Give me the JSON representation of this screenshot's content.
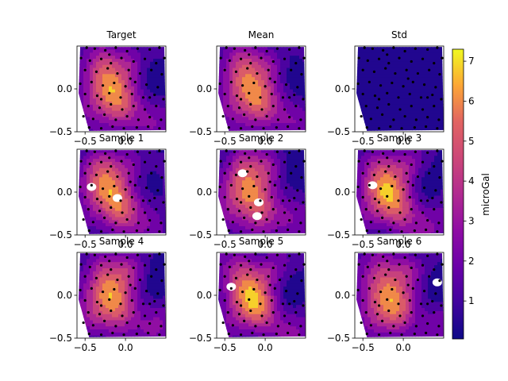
{
  "figure": {
    "colorbar": {
      "label": "microGal",
      "min": 0.05,
      "max": 7.3,
      "ticks": [
        1,
        2,
        3,
        4,
        5,
        6,
        7
      ],
      "colormap": "plasma"
    }
  },
  "chart_data": [
    {
      "type": "heatmap",
      "title": "Target",
      "xlim": [
        -0.6,
        0.5
      ],
      "ylim": [
        -0.5,
        0.5
      ],
      "xticks": [
        -0.5,
        0.0
      ],
      "yticks": [
        -0.5,
        0.0
      ],
      "xtick_labels": [
        "−0.5",
        "0.0"
      ],
      "ytick_labels": [
        "−0.5",
        "0.0"
      ],
      "field": "target",
      "holes": [],
      "show_xticks": true
    },
    {
      "type": "heatmap",
      "title": "Mean",
      "xlim": [
        -0.6,
        0.5
      ],
      "ylim": [
        -0.5,
        0.5
      ],
      "xticks": [
        -0.5,
        0.0
      ],
      "yticks": [
        -0.5,
        0.0
      ],
      "xtick_labels": [
        "−0.5",
        "0.0"
      ],
      "ytick_labels": [
        "−0.5",
        "0.0"
      ],
      "field": "mean",
      "holes": [],
      "show_xticks": true
    },
    {
      "type": "heatmap",
      "title": "Std",
      "xlim": [
        -0.6,
        0.5
      ],
      "ylim": [
        -0.5,
        0.5
      ],
      "xticks": [
        -0.5,
        0.0
      ],
      "yticks": [
        -0.5,
        0.0
      ],
      "xtick_labels": [
        "−0.5",
        "0.0"
      ],
      "ytick_labels": [
        "−0.5",
        "0.0"
      ],
      "field": "std",
      "holes": [],
      "show_xticks": true
    },
    {
      "type": "heatmap",
      "title": "Sample 1",
      "xlim": [
        -0.6,
        0.5
      ],
      "ylim": [
        -0.5,
        0.5
      ],
      "xticks": [
        -0.5,
        0.0
      ],
      "yticks": [
        -0.5,
        0.0
      ],
      "xtick_labels": [
        "−0.5",
        "0.0"
      ],
      "ytick_labels": [
        "−0.5",
        "0.0"
      ],
      "field": "s1",
      "holes": [
        [
          -0.1,
          -0.07
        ],
        [
          -0.42,
          0.06
        ]
      ],
      "show_xticks": true
    },
    {
      "type": "heatmap",
      "title": "Sample 2",
      "xlim": [
        -0.6,
        0.5
      ],
      "ylim": [
        -0.5,
        0.5
      ],
      "xticks": [
        -0.5,
        0.0
      ],
      "yticks": [
        -0.5,
        0.0
      ],
      "xtick_labels": [
        "−0.5",
        "0.0"
      ],
      "ytick_labels": [
        "−0.5",
        "0.0"
      ],
      "field": "s2",
      "holes": [
        [
          -0.28,
          0.22
        ],
        [
          -0.08,
          -0.12
        ],
        [
          -0.1,
          -0.28
        ]
      ],
      "show_xticks": true
    },
    {
      "type": "heatmap",
      "title": "Sample 3",
      "xlim": [
        -0.6,
        0.5
      ],
      "ylim": [
        -0.5,
        0.5
      ],
      "xticks": [
        -0.5,
        0.0
      ],
      "yticks": [
        -0.5,
        0.0
      ],
      "xtick_labels": [
        "−0.5",
        "0.0"
      ],
      "ytick_labels": [
        "−0.5",
        "0.0"
      ],
      "field": "s3",
      "holes": [
        [
          -0.38,
          0.08
        ]
      ],
      "show_xticks": true
    },
    {
      "type": "heatmap",
      "title": "Sample 4",
      "xlim": [
        -0.6,
        0.5
      ],
      "ylim": [
        -0.5,
        0.5
      ],
      "xticks": [
        -0.5,
        0.0
      ],
      "yticks": [
        -0.5,
        0.0
      ],
      "xtick_labels": [
        "−0.5",
        "0.0"
      ],
      "ytick_labels": [
        "−0.5",
        "0.0"
      ],
      "field": "s4",
      "holes": [],
      "show_xticks": true
    },
    {
      "type": "heatmap",
      "title": "Sample 5",
      "xlim": [
        -0.6,
        0.5
      ],
      "ylim": [
        -0.5,
        0.5
      ],
      "xticks": [
        -0.5,
        0.0
      ],
      "yticks": [
        -0.5,
        0.0
      ],
      "xtick_labels": [
        "−0.5",
        "0.0"
      ],
      "ytick_labels": [
        "−0.5",
        "0.0"
      ],
      "field": "s5",
      "holes": [
        [
          -0.42,
          0.1
        ]
      ],
      "show_xticks": true
    },
    {
      "type": "heatmap",
      "title": "Sample 6",
      "xlim": [
        -0.6,
        0.5
      ],
      "ylim": [
        -0.5,
        0.5
      ],
      "xticks": [
        -0.5,
        0.0
      ],
      "yticks": [
        -0.5,
        0.0
      ],
      "xtick_labels": [
        "−0.5",
        "0.0"
      ],
      "ytick_labels": [
        "−0.5",
        "0.0"
      ],
      "field": "s6",
      "holes": [
        [
          0.42,
          0.15
        ]
      ],
      "show_xticks": true
    }
  ],
  "stations": [
    [
      -0.48,
      0.48
    ],
    [
      -0.38,
      0.47
    ],
    [
      -0.25,
      0.45
    ],
    [
      -0.12,
      0.48
    ],
    [
      0.02,
      0.44
    ],
    [
      0.15,
      0.47
    ],
    [
      0.3,
      0.46
    ],
    [
      0.42,
      0.48
    ],
    [
      -0.55,
      0.36
    ],
    [
      -0.44,
      0.33
    ],
    [
      -0.3,
      0.35
    ],
    [
      -0.18,
      0.3
    ],
    [
      -0.05,
      0.36
    ],
    [
      0.1,
      0.32
    ],
    [
      0.24,
      0.35
    ],
    [
      0.38,
      0.3
    ],
    [
      0.48,
      0.36
    ],
    [
      -0.5,
      0.22
    ],
    [
      -0.36,
      0.2
    ],
    [
      -0.22,
      0.24
    ],
    [
      -0.1,
      0.18
    ],
    [
      0.04,
      0.22
    ],
    [
      0.18,
      0.18
    ],
    [
      0.32,
      0.22
    ],
    [
      0.45,
      0.17
    ],
    [
      -0.56,
      0.06
    ],
    [
      -0.42,
      0.08
    ],
    [
      -0.28,
      0.04
    ],
    [
      -0.14,
      0.07
    ],
    [
      0.0,
      0.03
    ],
    [
      0.12,
      0.08
    ],
    [
      0.26,
      0.05
    ],
    [
      0.4,
      0.02
    ],
    [
      -0.5,
      -0.06
    ],
    [
      -0.35,
      -0.08
    ],
    [
      -0.2,
      -0.05
    ],
    [
      -0.06,
      -0.1
    ],
    [
      0.08,
      -0.06
    ],
    [
      0.22,
      -0.1
    ],
    [
      0.36,
      -0.07
    ],
    [
      0.47,
      -0.12
    ],
    [
      -0.46,
      -0.2
    ],
    [
      -0.32,
      -0.22
    ],
    [
      -0.18,
      -0.18
    ],
    [
      -0.04,
      -0.24
    ],
    [
      0.1,
      -0.2
    ],
    [
      0.24,
      -0.24
    ],
    [
      0.38,
      -0.2
    ],
    [
      -0.52,
      -0.32
    ],
    [
      -0.4,
      -0.35
    ],
    [
      -0.26,
      -0.3
    ],
    [
      -0.12,
      -0.36
    ],
    [
      0.02,
      -0.32
    ],
    [
      0.16,
      -0.36
    ],
    [
      0.3,
      -0.33
    ],
    [
      0.44,
      -0.36
    ],
    [
      -0.45,
      -0.45
    ],
    [
      -0.3,
      -0.46
    ],
    [
      -0.16,
      -0.44
    ],
    [
      -0.02,
      -0.46
    ],
    [
      0.14,
      -0.45
    ],
    [
      0.28,
      -0.44
    ],
    [
      0.42,
      -0.46
    ],
    [
      -0.2,
      0.4
    ],
    [
      0.3,
      -0.1
    ],
    [
      -0.3,
      -0.12
    ],
    [
      0.06,
      0.12
    ]
  ]
}
